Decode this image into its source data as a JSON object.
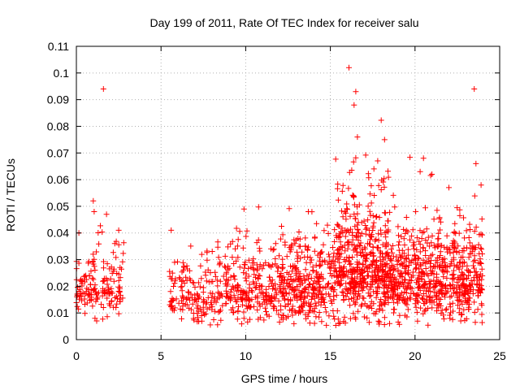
{
  "chart_data": {
    "type": "scatter",
    "title": "Day 199 of 2011, Rate Of TEC Index for receiver salu",
    "xlabel": "GPS time / hours",
    "ylabel": "ROTI / TECUs",
    "xlim": [
      0,
      25
    ],
    "ylim": [
      0,
      0.11
    ],
    "xticks": [
      "0",
      "5",
      "10",
      "15",
      "20",
      "25"
    ],
    "yticks": [
      "0",
      "0.01",
      "0.02",
      "0.03",
      "0.04",
      "0.05",
      "0.06",
      "0.07",
      "0.08",
      "0.09",
      "0.1",
      "0.11"
    ],
    "grid": true,
    "marker": "+",
    "color": "#ff0000",
    "outliers": [
      [
        1.6,
        0.094
      ],
      [
        16.1,
        0.102
      ],
      [
        23.5,
        0.094
      ],
      [
        16.5,
        0.093
      ],
      [
        16.4,
        0.088
      ],
      [
        18.2,
        0.075
      ],
      [
        16.6,
        0.076
      ],
      [
        20.5,
        0.068
      ],
      [
        23.6,
        0.066
      ],
      [
        1.0,
        0.052
      ],
      [
        1.05,
        0.048
      ],
      [
        9.9,
        0.049
      ],
      [
        0.15,
        0.04
      ],
      [
        5.6,
        0.041
      ],
      [
        2.5,
        0.041
      ],
      [
        20.3,
        0.063
      ],
      [
        21.0,
        0.062
      ],
      [
        22.0,
        0.057
      ],
      [
        23.9,
        0.058
      ],
      [
        13.7,
        0.048
      ],
      [
        1.1,
        0.008
      ],
      [
        1.2,
        0.007
      ],
      [
        5.7,
        0.011
      ],
      [
        15.5,
        0.006
      ],
      [
        22.7,
        0.007
      ],
      [
        18.5,
        0.006
      ]
    ],
    "segments": [
      {
        "x_range": [
          0.0,
          2.8
        ],
        "y_base": 0.02,
        "y_spread": 0.009,
        "density": 160
      },
      {
        "x_range": [
          5.5,
          8.2
        ],
        "y_base": 0.016,
        "y_spread": 0.008,
        "density": 140
      },
      {
        "x_range": [
          8.2,
          12.0
        ],
        "y_base": 0.018,
        "y_spread": 0.01,
        "density": 260
      },
      {
        "x_range": [
          12.0,
          15.3
        ],
        "y_base": 0.02,
        "y_spread": 0.012,
        "density": 330
      },
      {
        "x_range": [
          15.3,
          18.5
        ],
        "y_base": 0.026,
        "y_spread": 0.016,
        "density": 520
      },
      {
        "x_range": [
          18.5,
          21.5
        ],
        "y_base": 0.022,
        "y_spread": 0.012,
        "density": 360
      },
      {
        "x_range": [
          21.5,
          24.0
        ],
        "y_base": 0.021,
        "y_spread": 0.012,
        "density": 300
      }
    ]
  }
}
